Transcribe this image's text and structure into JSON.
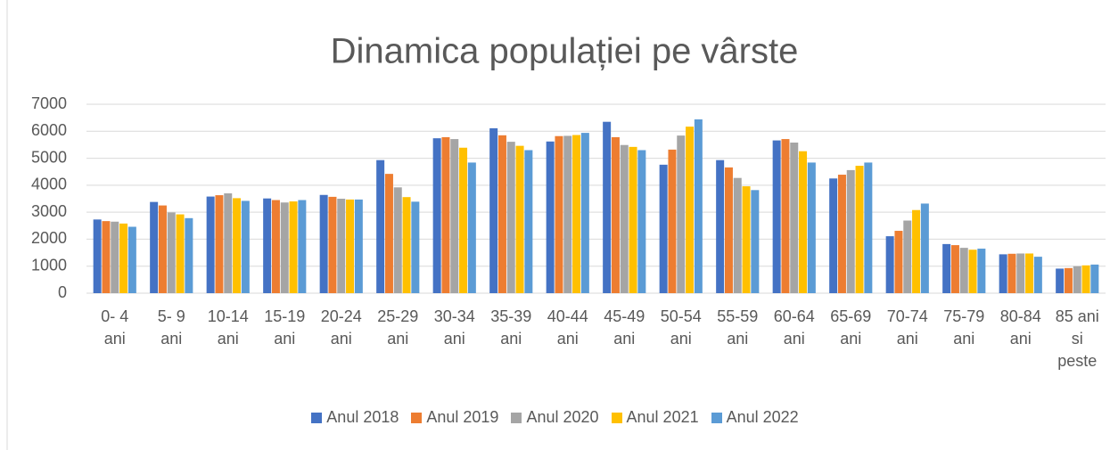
{
  "chart_data": {
    "type": "bar",
    "title": "Dinamica populației pe vârste",
    "categories": [
      "0- 4 ani",
      "5- 9 ani",
      "10-14 ani",
      "15-19 ani",
      "20-24 ani",
      "25-29 ani",
      "30-34 ani",
      "35-39 ani",
      "40-44 ani",
      "45-49 ani",
      "50-54 ani",
      "55-59 ani",
      "60-64 ani",
      "65-69 ani",
      "70-74 ani",
      "75-79 ani",
      "80-84 ani",
      "85 ani si peste"
    ],
    "series": [
      {
        "name": "Anul 2018",
        "color": "#4472c4",
        "values": [
          2730,
          3380,
          3580,
          3510,
          3640,
          4930,
          5740,
          6110,
          5620,
          6350,
          4760,
          4930,
          5660,
          4250,
          2110,
          1820,
          1440,
          910
        ]
      },
      {
        "name": "Anul 2019",
        "color": "#ed7d31",
        "values": [
          2670,
          3250,
          3630,
          3450,
          3570,
          4420,
          5780,
          5850,
          5820,
          5780,
          5320,
          4660,
          5710,
          4390,
          2310,
          1780,
          1460,
          930
        ]
      },
      {
        "name": "Anul 2020",
        "color": "#a5a5a5",
        "values": [
          2650,
          2990,
          3700,
          3360,
          3500,
          3920,
          5710,
          5610,
          5830,
          5490,
          5840,
          4270,
          5580,
          4560,
          2690,
          1680,
          1470,
          1000
        ]
      },
      {
        "name": "Anul 2021",
        "color": "#ffc000",
        "values": [
          2580,
          2920,
          3520,
          3400,
          3470,
          3560,
          5390,
          5460,
          5860,
          5420,
          6170,
          3960,
          5260,
          4720,
          3080,
          1610,
          1470,
          1030
        ]
      },
      {
        "name": "Anul 2022",
        "color": "#5b9bd5",
        "values": [
          2460,
          2780,
          3420,
          3450,
          3470,
          3390,
          4840,
          5300,
          5940,
          5300,
          6440,
          3820,
          4840,
          4840,
          3320,
          1650,
          1350,
          1060
        ]
      }
    ],
    "ylim": [
      0,
      7000
    ],
    "yticks": [
      0,
      1000,
      2000,
      3000,
      4000,
      5000,
      6000,
      7000
    ],
    "grid": true,
    "legend": "bottom"
  }
}
